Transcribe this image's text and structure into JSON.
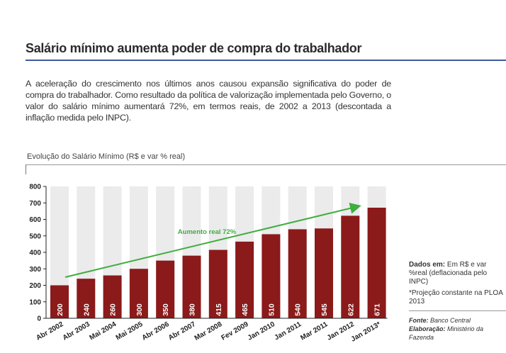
{
  "heading": "Salário mínimo aumenta poder de compra do trabalhador",
  "intro": "A aceleração do crescimento nos últimos anos causou expansão significativa do poder de compra do trabalhador. Como resultado da política de valorização implementada pelo Governo, o valor do salário mínimo aumentará 72%, em termos reais, de 2002 a 2013 (descontada a inflação medida pelo INPC).",
  "notes": {
    "dados_label": "Dados em:",
    "dados_text": "Em R$ e var %real (deflacionada pelo INPC)",
    "projecao": "*Projeção constante na PLOA 2013",
    "fonte_label": "Fonte:",
    "fonte_text": "Banco Central",
    "elaboracao_label": "Elaboração:",
    "elaboracao_text": "Ministério da Fazenda"
  },
  "chart_data": {
    "type": "bar",
    "title": "Evolução do Salário Mínimo (R$ e var % real)",
    "categories": [
      "Abr 2002",
      "Abr 2003",
      "Mai 2004",
      "Mai 2005",
      "Abr 2006",
      "Abr 2007",
      "Mar 2008",
      "Fev 2009",
      "Jan 2010",
      "Jan 2011",
      "Mar 2011",
      "Jan 2012",
      "Jan 2013*"
    ],
    "values": [
      200,
      240,
      260,
      300,
      350,
      380,
      415,
      465,
      510,
      540,
      545,
      622,
      671
    ],
    "ylim": [
      0,
      800
    ],
    "yticks": [
      0,
      100,
      200,
      300,
      400,
      500,
      600,
      700,
      800
    ],
    "xlabel": "",
    "ylabel": "",
    "grid": false,
    "annotation": "Aumento real 72%",
    "colors": {
      "bar": "#8b1a1a",
      "bar_background": "#ebebeb",
      "arrow": "#3fae3f",
      "axis": "#222222"
    }
  }
}
